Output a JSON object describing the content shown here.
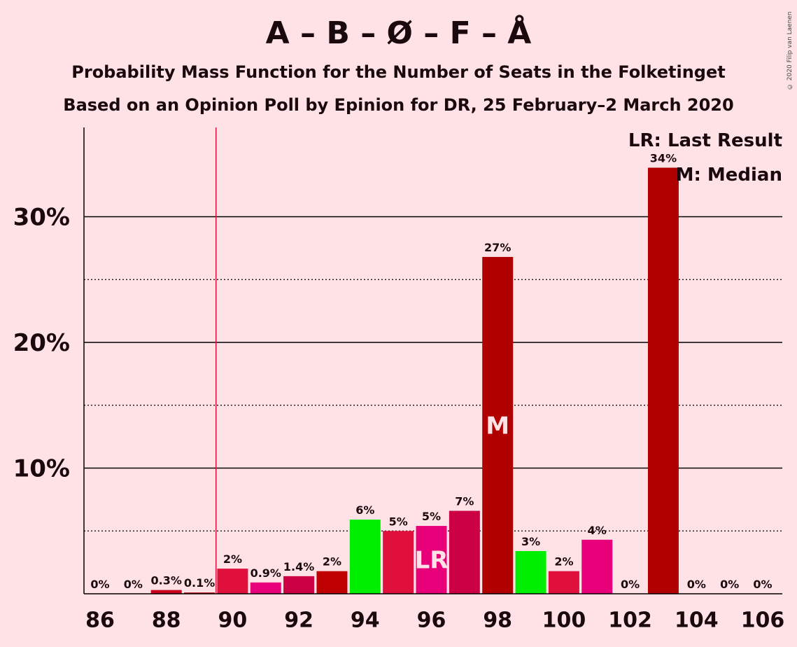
{
  "title": "A – B – Ø – F – Å",
  "subtitle": "Probability Mass Function for the Number of Seats in the Folketinget",
  "subtitle2": "Based on an Opinion Poll by Epinion for DR, 25 February–2 March 2020",
  "copyright": "© 2020 Filip van Laenen",
  "legend": {
    "lr": "LR: Last Result",
    "m": "M: Median"
  },
  "chart_data": {
    "type": "bar",
    "categories": [
      86,
      87,
      88,
      89,
      90,
      91,
      92,
      93,
      94,
      95,
      96,
      97,
      98,
      99,
      100,
      101,
      102,
      103,
      104,
      105,
      106
    ],
    "values": [
      0,
      0,
      0.3,
      0.1,
      2.0,
      0.9,
      1.4,
      1.8,
      5.9,
      5.0,
      5.4,
      6.6,
      26.8,
      3.4,
      1.8,
      4.3,
      0,
      33.9,
      0,
      0,
      0
    ],
    "labels": [
      "0%",
      "0%",
      "0.3%",
      "0.1%",
      "2%",
      "0.9%",
      "1.4%",
      "2%",
      "6%",
      "5%",
      "5%",
      "7%",
      "27%",
      "3%",
      "2%",
      "4%",
      "0%",
      "34%",
      "0%",
      "0%",
      "0%"
    ],
    "colors": [
      "#e0103c",
      "#e0103c",
      "#c8001e",
      "#b00000",
      "#e0103c",
      "#e8007a",
      "#cc0044",
      "#c00000",
      "#00ee00",
      "#e0103c",
      "#e8007a",
      "#cc0044",
      "#b00000",
      "#00ee00",
      "#e0103c",
      "#e8007a",
      "#cc0044",
      "#b00000",
      "#00ee00",
      "#e0103c",
      "#e8007a"
    ],
    "x_ticks": [
      "86",
      "88",
      "90",
      "92",
      "94",
      "96",
      "98",
      "100",
      "102",
      "104",
      "106"
    ],
    "y_ticks": [
      "10%",
      "20%",
      "30%"
    ],
    "ylim": [
      0,
      37
    ],
    "last_result": 96,
    "last_result_marker": "LR",
    "median": 98,
    "median_marker": "M",
    "majority_line": 89.5,
    "grid": true
  }
}
